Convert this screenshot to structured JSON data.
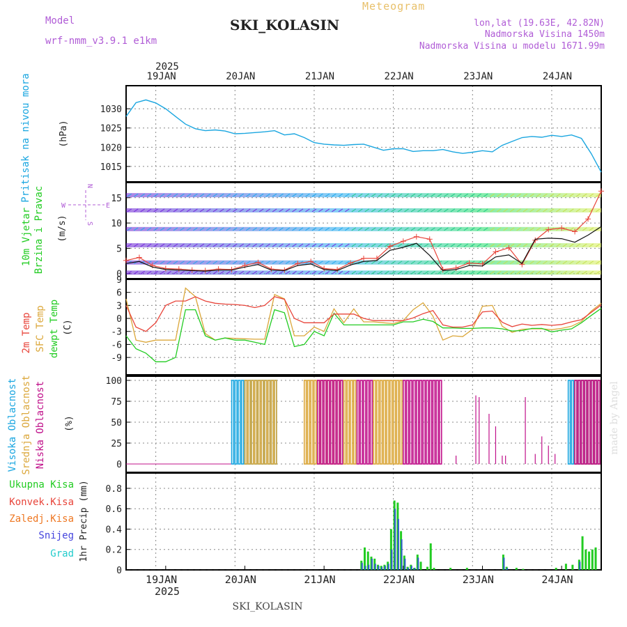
{
  "header": {
    "title": "SKI_KOLASIN",
    "subtitle": "Meteogram",
    "model_label": "Model",
    "model_name": "wrf-nmm_v3.9.1 e1km",
    "lonlat": "lon,lat (19.63E, 42.82N)",
    "altitude": "Nadmorska Visina 1450m",
    "model_altitude": "Nadmorska Visina u modelu 1671.99m",
    "footer": "SKI_KOLASIN",
    "watermark": "made by Angel"
  },
  "time_axis": {
    "year": "2025",
    "days": [
      "19JAN",
      "20JAN",
      "21JAN",
      "22JAN",
      "23JAN",
      "24JAN"
    ]
  },
  "colors": {
    "pressure": "#1aa6e0",
    "t2m": "#e8443a",
    "sfc": "#dba73a",
    "dew": "#22cc22",
    "high_cloud": "#1aa6e0",
    "mid_cloud": "#dba73a",
    "low_cloud": "#c0108a",
    "purple": "#b05cd6",
    "green_label": "#22cc22"
  },
  "chart_data": [
    {
      "type": "line",
      "panel": "pressure",
      "ylabel_left": "Pritisak na nivou mora",
      "ylabel_unit": "(hPa)",
      "ylim": [
        1011,
        1036
      ],
      "yticks": [
        1015,
        1020,
        1025,
        1030
      ],
      "x_hours": [
        0,
        3,
        6,
        9,
        12,
        15,
        18,
        21,
        24,
        27,
        30,
        33,
        36,
        39,
        42,
        45,
        48,
        51,
        54,
        57,
        60,
        63,
        66,
        69,
        72,
        75,
        78,
        81,
        84,
        87,
        90,
        93,
        96,
        99,
        102,
        105,
        108,
        111,
        114,
        117,
        120,
        123,
        126,
        129,
        132,
        135,
        138,
        141,
        144
      ],
      "series": [
        {
          "values": [
            1028,
            1031.6,
            1032.3,
            1031.5,
            1030,
            1028,
            1026,
            1024.8,
            1024.3,
            1024.5,
            1024.2,
            1023.5,
            1023.6,
            1023.8,
            1024,
            1024.3,
            1023.2,
            1023.5,
            1022.5,
            1021.2,
            1020.8,
            1020.6,
            1020.5,
            1020.7,
            1020.8,
            1020,
            1019.2,
            1019.6,
            1019.6,
            1018.9,
            1019.1,
            1019.1,
            1019.4,
            1018.8,
            1018.4,
            1018.7,
            1019.1,
            1018.8,
            1020.5,
            1021.5,
            1022.5,
            1022.8,
            1022.6,
            1023.1,
            1022.8,
            1023.2,
            1022.3,
            1018.3,
            1013.5
          ]
        }
      ]
    },
    {
      "type": "line",
      "panel": "wind",
      "ylabel_left": [
        "10m Vjetar",
        "Brzina i Pravac"
      ],
      "ylabel_unit": "(m/s)",
      "direction_legend": [
        "N",
        "E",
        "S",
        "W"
      ],
      "ylim": [
        -1,
        18
      ],
      "yticks": [
        0,
        5,
        10,
        15
      ],
      "x_hours": [
        0,
        4,
        8,
        12,
        16,
        20,
        24,
        28,
        32,
        36,
        40,
        44,
        48,
        52,
        56,
        60,
        64,
        68,
        72,
        76,
        80,
        84,
        88,
        92,
        96,
        100,
        104,
        108,
        112,
        116,
        120,
        124,
        128,
        132,
        136,
        140,
        144
      ],
      "series": [
        {
          "values": [
            2.6,
            3.2,
            1.6,
            1.0,
            0.9,
            0.7,
            0.6,
            0.9,
            0.8,
            1.6,
            2.2,
            0.9,
            0.7,
            2.0,
            2.4,
            1.0,
            0.8,
            2.1,
            3.0,
            3.0,
            5.4,
            6.4,
            7.3,
            6.8,
            0.8,
            1.1,
            2.1,
            1.9,
            4.3,
            5.1,
            1.8,
            6.6,
            8.7,
            9.0,
            8.3,
            10.8,
            16.3
          ]
        },
        {
          "values": [
            2.0,
            2.4,
            1.3,
            0.8,
            0.7,
            0.6,
            0.5,
            0.7,
            0.7,
            1.3,
            1.8,
            0.7,
            0.6,
            1.6,
            1.9,
            0.8,
            0.6,
            1.7,
            2.4,
            2.6,
            4.6,
            5.2,
            6.0,
            3.6,
            0.6,
            0.8,
            1.6,
            1.5,
            3.3,
            3.7,
            2.0,
            6.8,
            7.0,
            6.9,
            6.2,
            7.6,
            9.3
          ]
        }
      ]
    },
    {
      "type": "line",
      "panel": "temperature",
      "ylabel_left": [
        "2m Temp",
        "SFC Temp",
        "dewpt Temp"
      ],
      "ylabel_unit": "(C)",
      "ylim": [
        -13,
        9
      ],
      "yticks": [
        -9,
        -6,
        -3,
        0,
        3,
        6,
        9
      ],
      "x_hours": [
        0,
        3,
        6,
        9,
        12,
        15,
        18,
        21,
        24,
        27,
        30,
        33,
        36,
        39,
        42,
        45,
        48,
        51,
        54,
        57,
        60,
        63,
        66,
        69,
        72,
        75,
        78,
        81,
        84,
        87,
        90,
        93,
        96,
        99,
        102,
        105,
        108,
        111,
        114,
        117,
        120,
        123,
        126,
        129,
        132,
        135,
        138,
        141,
        144
      ],
      "series": [
        {
          "name": "2m Temp",
          "values": [
            3,
            -2,
            -3,
            -1,
            3,
            4,
            4,
            5,
            4,
            3.5,
            3.3,
            3.2,
            3,
            2.5,
            3,
            5,
            4.4,
            0,
            -1,
            -1,
            -1,
            1,
            1,
            1,
            0,
            -0.5,
            -0.5,
            -0.5,
            -0.5,
            0.1,
            1.1,
            1.8,
            -1.5,
            -2,
            -2,
            -1.5,
            1.5,
            1.7,
            -0.9,
            -1.9,
            -1.3,
            -1.6,
            -1.4,
            -1.6,
            -1.4,
            -0.8,
            -0.3,
            1.4,
            3.1
          ]
        },
        {
          "name": "SFC Temp",
          "values": [
            4.5,
            -5,
            -5.5,
            -5,
            -5,
            -5,
            7,
            5,
            -3.5,
            -5,
            -4.5,
            -4.6,
            -4.7,
            -4.8,
            -4.8,
            5.5,
            4.5,
            -4,
            -4,
            -2,
            -3,
            2.2,
            -1,
            2.2,
            -0.8,
            -0.8,
            -1,
            -1.2,
            -0.5,
            2,
            3.6,
            0.5,
            -5,
            -4,
            -4.2,
            -2.5,
            2.8,
            3,
            -1.8,
            -3.2,
            -2.5,
            -2.4,
            -2.4,
            -2.6,
            -2.3,
            -1.8,
            -0.7,
            1.7,
            3.5
          ]
        },
        {
          "name": "dewpt Temp",
          "values": [
            -4,
            -7,
            -8,
            -10,
            -10,
            -9,
            2,
            2,
            -4,
            -5,
            -4.5,
            -5,
            -5,
            -5.5,
            -6,
            2,
            1.3,
            -6.5,
            -6,
            -3,
            -4,
            1.2,
            -1.5,
            -1.5,
            -1.5,
            -1.5,
            -1.5,
            -1.5,
            -0.8,
            -0.8,
            -0.2,
            -0.7,
            -2.2,
            -2.2,
            -2.3,
            -2.3,
            -2.2,
            -2.2,
            -2.4,
            -2.9,
            -2.8,
            -2.3,
            -2.3,
            -3.1,
            -2.7,
            -2.4,
            -1,
            0.7,
            2.3
          ]
        }
      ]
    },
    {
      "type": "bar",
      "panel": "clouds",
      "ylabel_left": [
        "Visoka Oblacnost",
        "Srednja Oblacnost",
        "Niska Oblacnost"
      ],
      "ylabel_unit": "(%)",
      "ylim": [
        -10,
        105
      ],
      "yticks": [
        0,
        25,
        50,
        75,
        100
      ],
      "high_bar_hours": [
        [
          32,
          46
        ],
        [
          134,
          144
        ]
      ],
      "mid_bar_hours": [
        [
          36,
          46
        ],
        [
          54,
          70
        ],
        [
          75,
          84
        ],
        [
          136,
          144
        ]
      ],
      "low_bar_hours": [
        [
          58,
          66
        ],
        [
          70,
          75
        ],
        [
          84,
          96
        ],
        [
          136,
          144
        ]
      ],
      "low_sparse": [
        {
          "hour": 84,
          "value": 65
        },
        {
          "hour": 90,
          "value": 10
        },
        {
          "hour": 95,
          "value": 10
        },
        {
          "hour": 100,
          "value": 10
        },
        {
          "hour": 106,
          "value": 82
        },
        {
          "hour": 107,
          "value": 80
        },
        {
          "hour": 110,
          "value": 60
        },
        {
          "hour": 112,
          "value": 45
        },
        {
          "hour": 114,
          "value": 10
        },
        {
          "hour": 115,
          "value": 10
        },
        {
          "hour": 121,
          "value": 80
        },
        {
          "hour": 124,
          "value": 12
        },
        {
          "hour": 126,
          "value": 33
        },
        {
          "hour": 128,
          "value": 22
        },
        {
          "hour": 130,
          "value": 12
        }
      ]
    },
    {
      "type": "bar",
      "panel": "precipitation",
      "ylabel_left": [
        "Ukupna Kisa",
        "Konvek.Kisa",
        "Zaledj.Kisa",
        "Snijeg",
        "Grad"
      ],
      "ylabel_unit": "1hr Precip (mm)",
      "ylim": [
        0,
        0.95
      ],
      "yticks": [
        0,
        0.2,
        0.4,
        0.6,
        0.8
      ],
      "bars": [
        {
          "hour": 71,
          "total": 0.09,
          "snow": 0.07
        },
        {
          "hour": 72,
          "total": 0.22,
          "snow": 0.04
        },
        {
          "hour": 73,
          "total": 0.18,
          "snow": 0.05
        },
        {
          "hour": 74,
          "total": 0.13,
          "snow": 0.11
        },
        {
          "hour": 75,
          "total": 0.11,
          "snow": 0.06
        },
        {
          "hour": 76,
          "total": 0.05,
          "snow": 0.04
        },
        {
          "hour": 77,
          "total": 0.04,
          "snow": 0.03
        },
        {
          "hour": 78,
          "total": 0.05,
          "snow": 0.04
        },
        {
          "hour": 79,
          "total": 0.08,
          "snow": 0.06
        },
        {
          "hour": 80,
          "total": 0.4,
          "snow": 0.2
        },
        {
          "hour": 81,
          "total": 0.68,
          "snow": 0.6
        },
        {
          "hour": 82,
          "total": 0.66,
          "snow": 0.5
        },
        {
          "hour": 83,
          "total": 0.38,
          "snow": 0.3
        },
        {
          "hour": 84,
          "total": 0.14,
          "snow": 0.11
        },
        {
          "hour": 85,
          "total": 0.03,
          "snow": 0.02
        },
        {
          "hour": 86,
          "total": 0.05,
          "snow": 0.04
        },
        {
          "hour": 87,
          "total": 0.02,
          "snow": 0.02
        },
        {
          "hour": 88,
          "total": 0.15,
          "snow": 0.12
        },
        {
          "hour": 89,
          "total": 0.08,
          "snow": 0
        },
        {
          "hour": 91,
          "total": 0.03,
          "snow": 0
        },
        {
          "hour": 92,
          "total": 0.26,
          "snow": 0
        },
        {
          "hour": 93,
          "total": 0.02,
          "snow": 0
        },
        {
          "hour": 98,
          "total": 0.02,
          "snow": 0
        },
        {
          "hour": 103,
          "total": 0.02,
          "snow": 0
        },
        {
          "hour": 114,
          "total": 0.15,
          "snow": 0.12
        },
        {
          "hour": 115,
          "total": 0.03,
          "snow": 0.02
        },
        {
          "hour": 118,
          "total": 0.02,
          "snow": 0
        },
        {
          "hour": 120,
          "total": 0.01,
          "snow": 0
        },
        {
          "hour": 130,
          "total": 0.02,
          "snow": 0
        },
        {
          "hour": 133,
          "total": 0.06,
          "snow": 0
        },
        {
          "hour": 135,
          "total": 0.05,
          "snow": 0
        },
        {
          "hour": 137,
          "total": 0.1,
          "snow": 0.08
        },
        {
          "hour": 138,
          "total": 0.33,
          "snow": 0
        },
        {
          "hour": 139,
          "total": 0.2,
          "snow": 0
        },
        {
          "hour": 140,
          "total": 0.18,
          "snow": 0
        },
        {
          "hour": 141,
          "total": 0.2,
          "snow": 0
        },
        {
          "hour": 142,
          "total": 0.22,
          "snow": 0
        }
      ]
    }
  ]
}
